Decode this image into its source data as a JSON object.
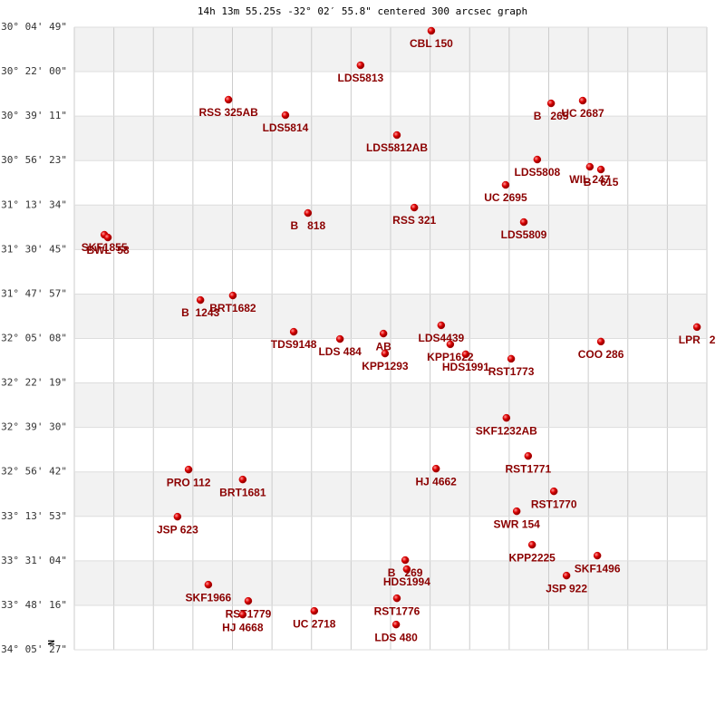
{
  "chart_data": {
    "type": "scatter",
    "title": "14h 13m 55.25s -32° 02′ 55.8\" centered 300 arcsec graph",
    "north_label": "N",
    "color": "#cc0000",
    "label_color": "#8b0000",
    "grid": true,
    "xlim": [
      0,
      16
    ],
    "xticks": [
      0,
      1,
      2,
      3,
      4,
      5,
      6,
      7,
      8,
      9,
      10,
      11,
      12,
      13,
      14,
      15,
      16
    ],
    "ylim": [
      -34.0908,
      -30.0803
    ],
    "yticks": [
      {
        "value": -30.0803,
        "label": "-30° 04' 49\""
      },
      {
        "value": -30.3667,
        "label": "-30° 22' 00\""
      },
      {
        "value": -30.6531,
        "label": "-30° 39' 11\""
      },
      {
        "value": -30.9397,
        "label": "-30° 56' 23\""
      },
      {
        "value": -31.2261,
        "label": "-31° 13' 34\""
      },
      {
        "value": -31.5125,
        "label": "-31° 30' 45\""
      },
      {
        "value": -31.7992,
        "label": "-31° 47' 57\""
      },
      {
        "value": -32.0856,
        "label": "-32° 05' 08\""
      },
      {
        "value": -32.3719,
        "label": "-32° 22' 19\""
      },
      {
        "value": -32.6583,
        "label": "-32° 39' 30\""
      },
      {
        "value": -32.945,
        "label": "-32° 56' 42\""
      },
      {
        "value": -33.2314,
        "label": "-33° 13' 53\""
      },
      {
        "value": -33.5178,
        "label": "-33° 31' 04\""
      },
      {
        "value": -33.8044,
        "label": "-33° 48' 16\""
      },
      {
        "value": -34.0908,
        "label": "-34° 05' 27\""
      }
    ],
    "labels": [
      "CBL 150",
      "LDS5813",
      "RSS 325AB",
      "LDS5814",
      "B   265",
      "UC 2687",
      "LDS5812AB",
      "LDS5808",
      "WIL 247",
      "B   615",
      "UC 2695",
      "B   818",
      "RSS 321",
      "LDS5809",
      "SKF1855",
      "BWL  58",
      "B  1243",
      "BRT1682",
      "TDS9148",
      "LDS 484",
      "AB",
      "KPP1293",
      "LDS4439",
      "KPP1622",
      "HDS1991",
      "RST1773",
      "COO 286",
      "LPR   2",
      "SKF1232AB",
      "RST1771",
      "HJ 4662",
      "PRO 112",
      "BRT1681",
      "RST1770",
      "SWR 154",
      "JSP 623",
      "KPP2225",
      "SKF1496",
      "JSP 922",
      "B   269",
      "HDS1994",
      "SKF1966",
      "RST1779",
      "HJ 4668",
      "UC 2718",
      "RST1776",
      "LDS 480"
    ],
    "x": [
      9.03,
      7.24,
      3.9,
      5.34,
      12.06,
      12.86,
      8.16,
      11.71,
      13.04,
      13.32,
      10.91,
      5.91,
      8.6,
      11.37,
      0.76,
      0.85,
      3.19,
      4.01,
      5.55,
      6.72,
      7.82,
      7.86,
      9.28,
      9.51,
      9.9,
      11.05,
      13.32,
      15.75,
      10.93,
      11.48,
      9.15,
      2.89,
      4.26,
      12.13,
      11.19,
      2.61,
      11.58,
      13.23,
      12.45,
      8.37,
      8.41,
      3.39,
      4.4,
      4.26,
      6.07,
      8.16,
      8.14
    ],
    "y": [
      -30.1037,
      -30.3255,
      -30.5474,
      -30.6467,
      -30.5708,
      -30.5533,
      -30.7752,
      -30.9328,
      -30.9795,
      -30.997,
      -31.0963,
      -31.2773,
      -31.2423,
      -31.3357,
      -31.4174,
      -31.435,
      -31.8379,
      -31.8087,
      -32.0422,
      -32.0889,
      -32.0539,
      -32.1823,
      -32.0006,
      -32.1229,
      -32.1871,
      -32.2163,
      -32.1054,
      -32.0119,
      -32.597,
      -32.8422,
      -32.924,
      -32.9298,
      -32.994,
      -33.0699,
      -33.1984,
      -33.2334,
      -33.4143,
      -33.4843,
      -33.6128,
      -33.5131,
      -33.5715,
      -33.6712,
      -33.7763,
      -33.8639,
      -33.8405,
      -33.7588,
      -33.9281
    ]
  }
}
